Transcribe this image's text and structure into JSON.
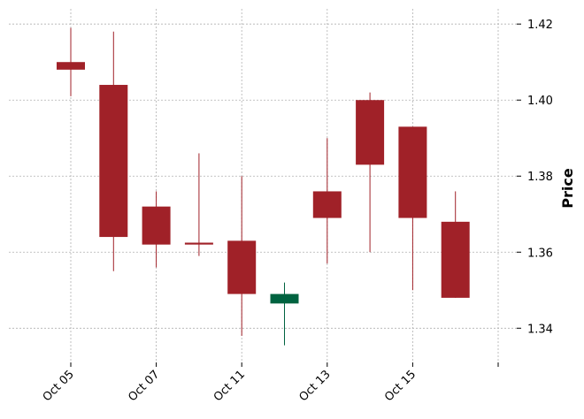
{
  "chart_data": {
    "type": "candlestick",
    "ylabel": "Price",
    "ylim": [
      1.331,
      1.424
    ],
    "y_ticks": [
      1.34,
      1.36,
      1.38,
      1.4,
      1.42
    ],
    "y_tick_labels": [
      "1.34",
      "1.36",
      "1.38",
      "1.40",
      "1.42"
    ],
    "x_tick_labels": [
      "Oct 05",
      "Oct 07",
      "Oct 11",
      "Oct 13",
      "Oct 15",
      ""
    ],
    "x_tick_positions": [
      0,
      2,
      4,
      6,
      8,
      10
    ],
    "grid": true,
    "y_axis_side": "right",
    "colors": {
      "up": "#006340",
      "down": "#a02128",
      "grid": "#b0b0b0"
    },
    "candles": [
      {
        "index": 0,
        "open": 1.41,
        "high": 1.419,
        "low": 1.401,
        "close": 1.408
      },
      {
        "index": 1,
        "open": 1.404,
        "high": 1.418,
        "low": 1.355,
        "close": 1.364
      },
      {
        "index": 2,
        "open": 1.372,
        "high": 1.376,
        "low": 1.356,
        "close": 1.362
      },
      {
        "index": 3,
        "open": 1.3625,
        "high": 1.386,
        "low": 1.359,
        "close": 1.362
      },
      {
        "index": 4,
        "open": 1.363,
        "high": 1.38,
        "low": 1.338,
        "close": 1.349
      },
      {
        "index": 5,
        "open": 1.3465,
        "high": 1.352,
        "low": 1.3355,
        "close": 1.349
      },
      {
        "index": 6,
        "open": 1.376,
        "high": 1.39,
        "low": 1.357,
        "close": 1.369
      },
      {
        "index": 7,
        "open": 1.4,
        "high": 1.402,
        "low": 1.36,
        "close": 1.383
      },
      {
        "index": 8,
        "open": 1.393,
        "high": 1.393,
        "low": 1.35,
        "close": 1.369
      },
      {
        "index": 9,
        "open": 1.368,
        "high": 1.376,
        "low": 1.348,
        "close": 1.348
      }
    ]
  }
}
